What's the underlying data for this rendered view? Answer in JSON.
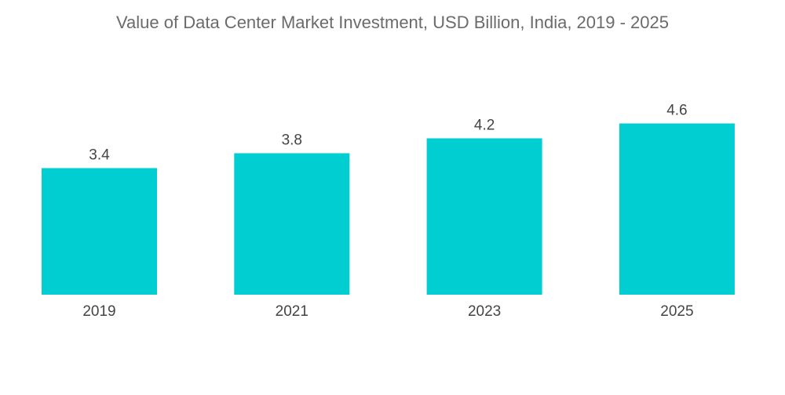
{
  "chart_data": {
    "type": "bar",
    "title": "Value of Data Center Market Investment, USD Billion, India, 2019 - 2025",
    "categories": [
      "2019",
      "2021",
      "2023",
      "2025"
    ],
    "values": [
      3.4,
      3.8,
      4.2,
      4.6
    ],
    "data_labels": [
      "3.4",
      "3.8",
      "4.2",
      "4.6"
    ],
    "xlabel": "",
    "ylabel": "",
    "ylim": [
      0,
      4.6
    ],
    "grid": false,
    "bar_color": "#00CED1"
  }
}
